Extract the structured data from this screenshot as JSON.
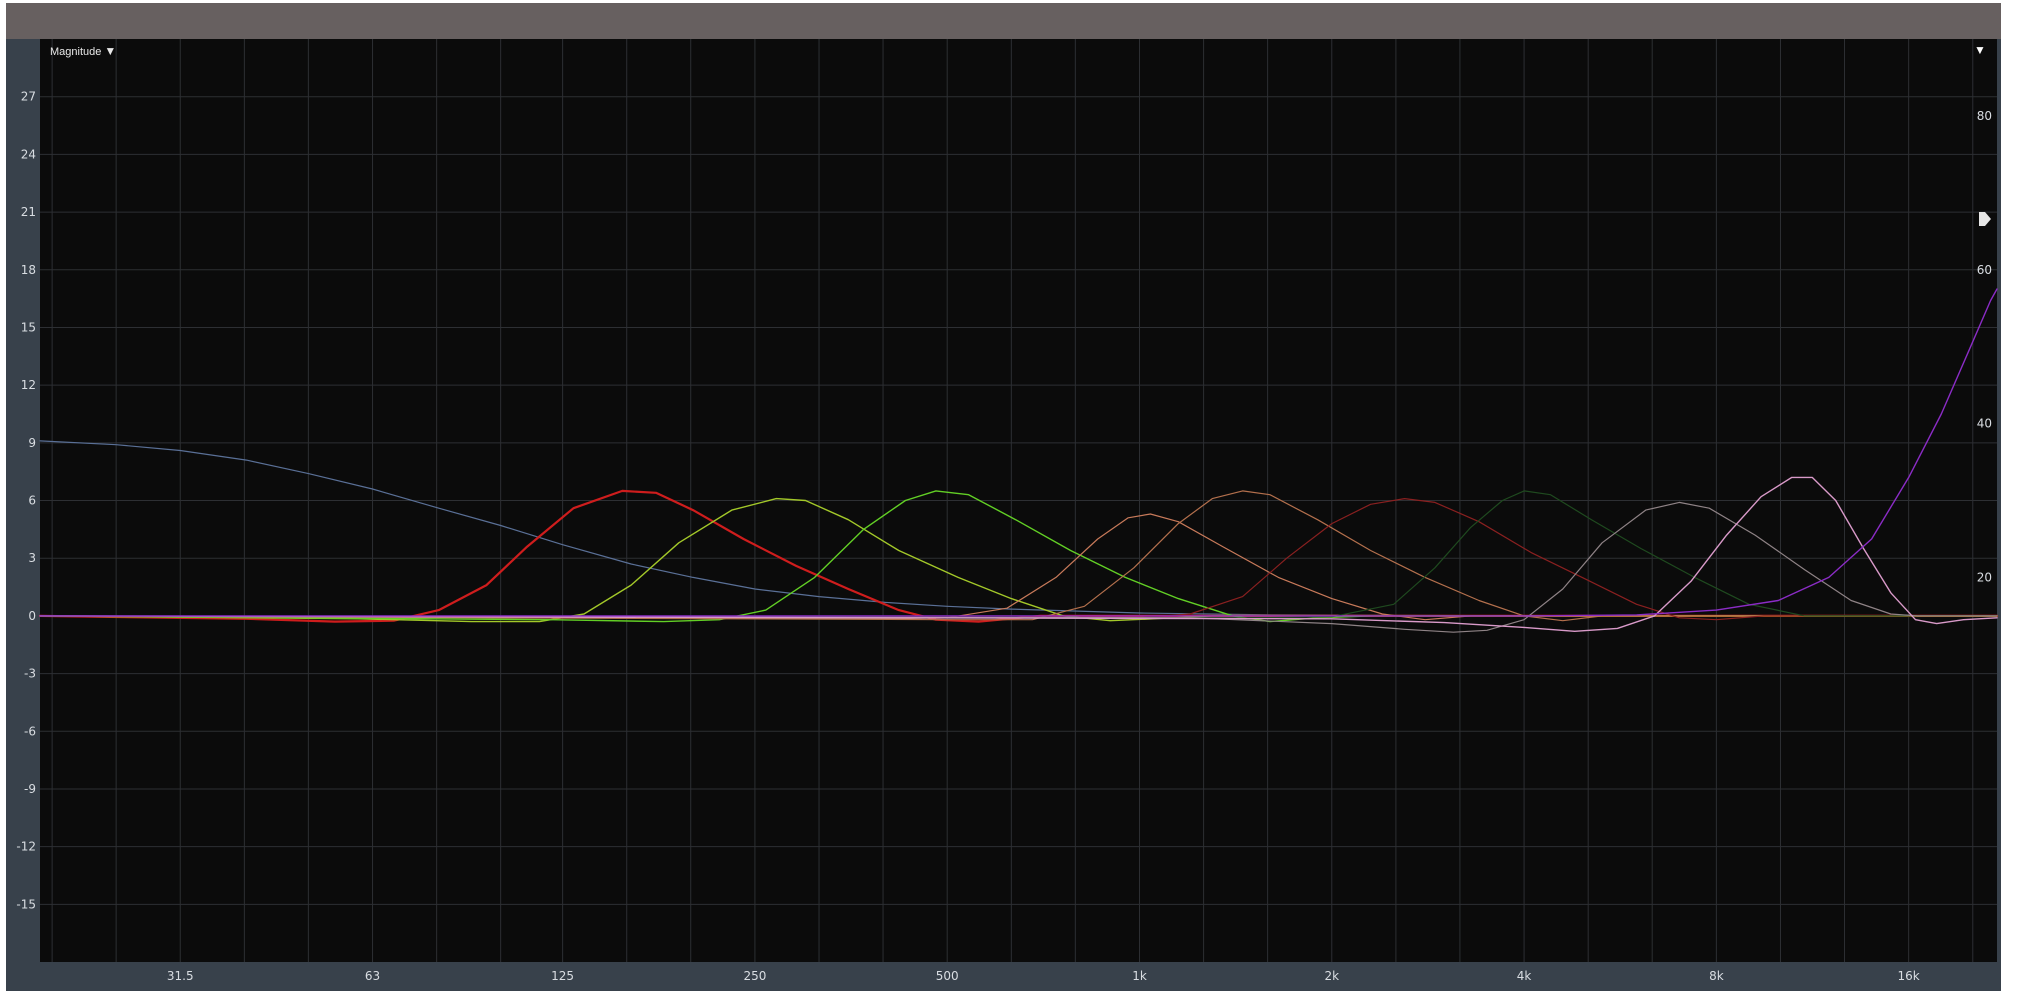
{
  "toolbar": {
    "magnitude_label": "Magnitude",
    "magnitude_icon": "triangle-down-icon",
    "right_menu_icon": "triangle-down-icon",
    "handle_icon": "gain-handle-icon"
  },
  "colors": {
    "background": "#0b0b0b",
    "frame": "#38414b",
    "titlebar": "#676060",
    "grid": "#2d2f33",
    "tick_text": "#d9dde2"
  },
  "chart_data": {
    "type": "line",
    "title": "",
    "xlabel": "",
    "ylabel": "",
    "x_scale": "log",
    "xlim": [
      19,
      22000
    ],
    "ylim": [
      -18,
      30
    ],
    "grid": true,
    "x_ticks": [
      {
        "value": 31.5,
        "label": "31.5"
      },
      {
        "value": 63,
        "label": "63"
      },
      {
        "value": 125,
        "label": "125"
      },
      {
        "value": 250,
        "label": "250"
      },
      {
        "value": 500,
        "label": "500"
      },
      {
        "value": 1000,
        "label": "1k"
      },
      {
        "value": 2000,
        "label": "2k"
      },
      {
        "value": 4000,
        "label": "4k"
      },
      {
        "value": 8000,
        "label": "8k"
      },
      {
        "value": 16000,
        "label": "16k"
      }
    ],
    "y_ticks": [
      27,
      24,
      21,
      18,
      15,
      12,
      9,
      6,
      3,
      0,
      -3,
      -6,
      -9,
      -12,
      -15
    ],
    "y2_ticks": [
      80,
      60,
      40,
      20
    ],
    "series": [
      {
        "color": "#5a7097",
        "width": 1.2,
        "points": [
          [
            19,
            9.1
          ],
          [
            25,
            8.9
          ],
          [
            31.5,
            8.6
          ],
          [
            40,
            8.1
          ],
          [
            50,
            7.4
          ],
          [
            63,
            6.6
          ],
          [
            80,
            5.6
          ],
          [
            100,
            4.7
          ],
          [
            125,
            3.7
          ],
          [
            160,
            2.7
          ],
          [
            200,
            2.0
          ],
          [
            250,
            1.4
          ],
          [
            315,
            1.0
          ],
          [
            400,
            0.7
          ],
          [
            500,
            0.5
          ],
          [
            630,
            0.35
          ],
          [
            800,
            0.25
          ],
          [
            1000,
            0.15
          ],
          [
            1600,
            0.05
          ],
          [
            4000,
            0
          ],
          [
            22000,
            0
          ]
        ]
      },
      {
        "color": "#cf1d1d",
        "width": 2.2,
        "points": [
          [
            19,
            0
          ],
          [
            40,
            -0.15
          ],
          [
            55,
            -0.3
          ],
          [
            68,
            -0.25
          ],
          [
            80,
            0.3
          ],
          [
            95,
            1.6
          ],
          [
            110,
            3.6
          ],
          [
            130,
            5.6
          ],
          [
            155,
            6.5
          ],
          [
            175,
            6.4
          ],
          [
            200,
            5.5
          ],
          [
            240,
            4.0
          ],
          [
            290,
            2.6
          ],
          [
            350,
            1.4
          ],
          [
            420,
            0.3
          ],
          [
            480,
            -0.2
          ],
          [
            560,
            -0.3
          ],
          [
            700,
            0
          ],
          [
            22000,
            0
          ]
        ]
      },
      {
        "color": "#a3c829",
        "width": 1.4,
        "points": [
          [
            19,
            0
          ],
          [
            60,
            -0.15
          ],
          [
            90,
            -0.3
          ],
          [
            115,
            -0.3
          ],
          [
            135,
            0.1
          ],
          [
            160,
            1.6
          ],
          [
            190,
            3.8
          ],
          [
            230,
            5.5
          ],
          [
            270,
            6.1
          ],
          [
            300,
            6.0
          ],
          [
            350,
            5.0
          ],
          [
            420,
            3.4
          ],
          [
            520,
            2.0
          ],
          [
            630,
            0.9
          ],
          [
            760,
            0
          ],
          [
            900,
            -0.25
          ],
          [
            1050,
            -0.15
          ],
          [
            1300,
            0
          ],
          [
            22000,
            0
          ]
        ]
      },
      {
        "color": "#62cf25",
        "width": 1.4,
        "points": [
          [
            19,
            0
          ],
          [
            120,
            -0.2
          ],
          [
            180,
            -0.3
          ],
          [
            220,
            -0.2
          ],
          [
            260,
            0.3
          ],
          [
            310,
            2.0
          ],
          [
            370,
            4.5
          ],
          [
            430,
            6.0
          ],
          [
            480,
            6.5
          ],
          [
            540,
            6.3
          ],
          [
            640,
            5.0
          ],
          [
            780,
            3.4
          ],
          [
            950,
            2.0
          ],
          [
            1150,
            0.9
          ],
          [
            1400,
            0
          ],
          [
            1600,
            -0.3
          ],
          [
            1900,
            -0.1
          ],
          [
            2300,
            0
          ],
          [
            22000,
            0
          ]
        ]
      },
      {
        "color": "#c87a5a",
        "width": 1.2,
        "points": [
          [
            19,
            0
          ],
          [
            400,
            -0.15
          ],
          [
            500,
            -0.1
          ],
          [
            620,
            0.4
          ],
          [
            740,
            2.0
          ],
          [
            860,
            4.0
          ],
          [
            960,
            5.1
          ],
          [
            1040,
            5.3
          ],
          [
            1150,
            4.9
          ],
          [
            1350,
            3.6
          ],
          [
            1650,
            2.0
          ],
          [
            2000,
            0.9
          ],
          [
            2400,
            0.1
          ],
          [
            2800,
            -0.2
          ],
          [
            3300,
            0
          ],
          [
            22000,
            0
          ]
        ]
      },
      {
        "color": "#b4704d",
        "width": 1.2,
        "points": [
          [
            19,
            0
          ],
          [
            500,
            -0.2
          ],
          [
            680,
            -0.2
          ],
          [
            820,
            0.5
          ],
          [
            980,
            2.5
          ],
          [
            1150,
            4.8
          ],
          [
            1300,
            6.1
          ],
          [
            1450,
            6.5
          ],
          [
            1600,
            6.3
          ],
          [
            1900,
            5.0
          ],
          [
            2300,
            3.4
          ],
          [
            2800,
            2.0
          ],
          [
            3400,
            0.8
          ],
          [
            4000,
            0
          ],
          [
            4600,
            -0.25
          ],
          [
            5300,
            0
          ],
          [
            22000,
            0
          ]
        ]
      },
      {
        "color": "#8a2020",
        "width": 1.2,
        "points": [
          [
            19,
            0
          ],
          [
            1000,
            -0.1
          ],
          [
            1200,
            0.1
          ],
          [
            1450,
            1.0
          ],
          [
            1700,
            3.0
          ],
          [
            2000,
            4.8
          ],
          [
            2300,
            5.8
          ],
          [
            2600,
            6.1
          ],
          [
            2900,
            5.9
          ],
          [
            3400,
            4.9
          ],
          [
            4100,
            3.3
          ],
          [
            5000,
            1.9
          ],
          [
            6000,
            0.6
          ],
          [
            7000,
            -0.1
          ],
          [
            8000,
            -0.2
          ],
          [
            9500,
            0
          ],
          [
            22000,
            0
          ]
        ]
      },
      {
        "color": "#1f4a1f",
        "width": 1.2,
        "points": [
          [
            19,
            0
          ],
          [
            1500,
            -0.1
          ],
          [
            2000,
            -0.05
          ],
          [
            2500,
            0.6
          ],
          [
            2900,
            2.5
          ],
          [
            3300,
            4.6
          ],
          [
            3700,
            6.0
          ],
          [
            4000,
            6.5
          ],
          [
            4400,
            6.3
          ],
          [
            5100,
            5.0
          ],
          [
            6100,
            3.5
          ],
          [
            7400,
            2.0
          ],
          [
            9000,
            0.6
          ],
          [
            11000,
            0
          ],
          [
            22000,
            0
          ]
        ]
      },
      {
        "color": "#8f8386",
        "width": 1.2,
        "points": [
          [
            19,
            0
          ],
          [
            1200,
            -0.1
          ],
          [
            2000,
            -0.4
          ],
          [
            2600,
            -0.7
          ],
          [
            3100,
            -0.85
          ],
          [
            3500,
            -0.75
          ],
          [
            4000,
            -0.2
          ],
          [
            4600,
            1.4
          ],
          [
            5300,
            3.8
          ],
          [
            6200,
            5.5
          ],
          [
            7000,
            5.9
          ],
          [
            7800,
            5.6
          ],
          [
            9200,
            4.2
          ],
          [
            11000,
            2.4
          ],
          [
            13000,
            0.8
          ],
          [
            15000,
            0.1
          ],
          [
            16500,
            0
          ],
          [
            22000,
            0
          ]
        ]
      },
      {
        "color": "#d99ac9",
        "width": 1.4,
        "points": [
          [
            19,
            0
          ],
          [
            2000,
            -0.15
          ],
          [
            3000,
            -0.35
          ],
          [
            4000,
            -0.6
          ],
          [
            4800,
            -0.8
          ],
          [
            5600,
            -0.65
          ],
          [
            6400,
            0
          ],
          [
            7300,
            1.8
          ],
          [
            8300,
            4.2
          ],
          [
            9400,
            6.2
          ],
          [
            10500,
            7.2
          ],
          [
            11300,
            7.2
          ],
          [
            12300,
            6.0
          ],
          [
            13600,
            3.5
          ],
          [
            15000,
            1.2
          ],
          [
            16400,
            -0.2
          ],
          [
            17700,
            -0.4
          ],
          [
            19500,
            -0.2
          ],
          [
            22000,
            -0.1
          ]
        ]
      },
      {
        "color": "#8b2cc6",
        "width": 1.4,
        "points": [
          [
            19,
            0
          ],
          [
            2000,
            0
          ],
          [
            4000,
            0
          ],
          [
            6000,
            0.05
          ],
          [
            8000,
            0.3
          ],
          [
            10000,
            0.8
          ],
          [
            12000,
            2.0
          ],
          [
            14000,
            4.0
          ],
          [
            16000,
            7.2
          ],
          [
            18000,
            10.5
          ],
          [
            20000,
            14.0
          ],
          [
            21500,
            16.4
          ],
          [
            22000,
            17.0
          ]
        ]
      }
    ]
  }
}
